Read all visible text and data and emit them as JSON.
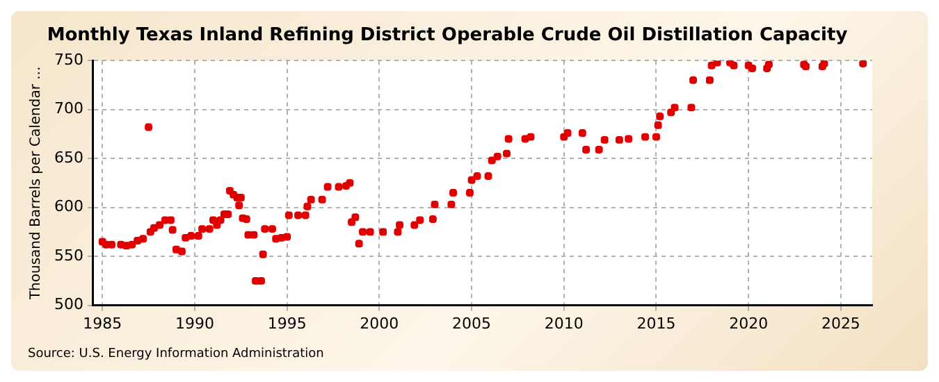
{
  "chart_data": {
    "type": "scatter",
    "title": "Monthly Texas Inland Refining District Operable Crude Oil Distillation Capacity",
    "ylabel": "Thousand Barrels per Calendar ...",
    "annotations": [
      "Source: U.S. Energy Information Administration"
    ],
    "x": [
      1985.0,
      1985.2,
      1985.5,
      1986.0,
      1986.3,
      1986.6,
      1986.9,
      1987.2,
      1987.5,
      1987.6,
      1987.8,
      1988.1,
      1988.4,
      1988.7,
      1988.8,
      1989.0,
      1989.3,
      1989.5,
      1989.8,
      1990.2,
      1990.4,
      1990.8,
      1991.0,
      1991.2,
      1991.4,
      1991.6,
      1991.8,
      1991.9,
      1992.1,
      1992.3,
      1992.4,
      1992.5,
      1992.6,
      1992.8,
      1992.9,
      1993.2,
      1993.3,
      1993.6,
      1993.7,
      1993.8,
      1994.2,
      1994.4,
      1994.7,
      1995.0,
      1995.1,
      1995.6,
      1996.0,
      1996.1,
      1996.3,
      1996.9,
      1997.2,
      1997.8,
      1998.2,
      1998.4,
      1998.5,
      1998.7,
      1998.9,
      1999.1,
      1999.5,
      2000.2,
      2001.0,
      2001.1,
      2001.9,
      2002.2,
      2002.9,
      2003.0,
      2003.9,
      2004.0,
      2004.9,
      2005.0,
      2005.3,
      2005.9,
      2006.1,
      2006.4,
      2006.9,
      2007.0,
      2007.9,
      2008.2,
      2010.0,
      2010.2,
      2011.0,
      2011.2,
      2011.9,
      2012.2,
      2013.0,
      2013.5,
      2014.4,
      2015.0,
      2015.1,
      2015.2,
      2015.8,
      2016.0,
      2016.9,
      2017.0,
      2017.9,
      2018.0,
      2018.3,
      2019.0,
      2019.2,
      2020.0,
      2020.2,
      2021.0,
      2021.1,
      2023.0,
      2023.1,
      2024.0,
      2024.1,
      2026.2
    ],
    "series": [
      {
        "color": "#e00000",
        "values": [
          565,
          562,
          562,
          562,
          561,
          562,
          566,
          568,
          682,
          575,
          579,
          582,
          587,
          587,
          577,
          557,
          555,
          569,
          571,
          571,
          578,
          578,
          587,
          582,
          587,
          593,
          593,
          617,
          613,
          610,
          602,
          610,
          589,
          588,
          572,
          572,
          525,
          525,
          552,
          578,
          578,
          568,
          569,
          570,
          592,
          592,
          592,
          601,
          608,
          608,
          621,
          621,
          622,
          625,
          585,
          590,
          563,
          575,
          575,
          575,
          575,
          582,
          582,
          587,
          588,
          603,
          603,
          615,
          615,
          628,
          632,
          632,
          648,
          652,
          655,
          670,
          670,
          672,
          672,
          676,
          676,
          659,
          659,
          669,
          669,
          670,
          672,
          672,
          684,
          693,
          697,
          702,
          702,
          730,
          730,
          745,
          748,
          748,
          745,
          745,
          742,
          742,
          746,
          746,
          744,
          744,
          747,
          747
        ]
      }
    ],
    "xlim": [
      1984.5,
      2026.7
    ],
    "xticks": [
      1985,
      1990,
      1995,
      2000,
      2005,
      2010,
      2015,
      2020,
      2025
    ],
    "ylim": [
      500,
      750
    ],
    "yticks": [
      500,
      550,
      600,
      650,
      700,
      750
    ],
    "grid": true,
    "marker": "square",
    "legend": false
  }
}
